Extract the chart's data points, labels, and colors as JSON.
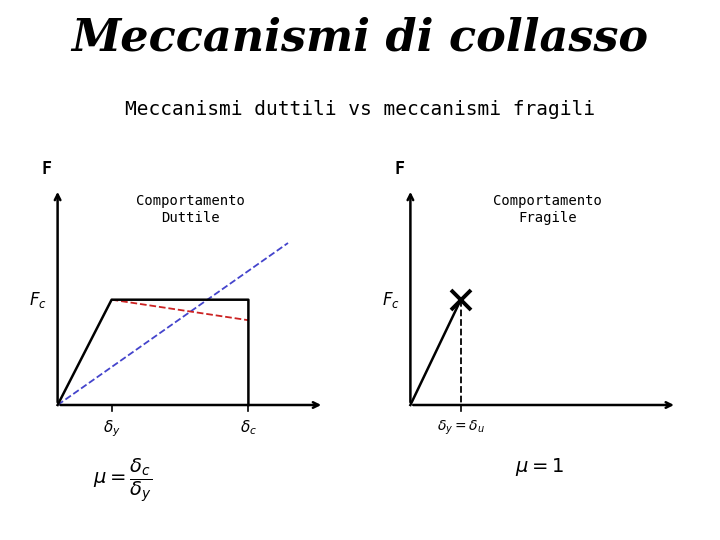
{
  "title": "Meccanismi di collasso",
  "subtitle": "Meccanismi duttili vs meccanismi fragili",
  "title_fontsize": 32,
  "subtitle_fontsize": 14,
  "background_color": "#ffffff",
  "left_label": "Comportamento\nDuttile",
  "right_label": "Comportamento\nFragile"
}
